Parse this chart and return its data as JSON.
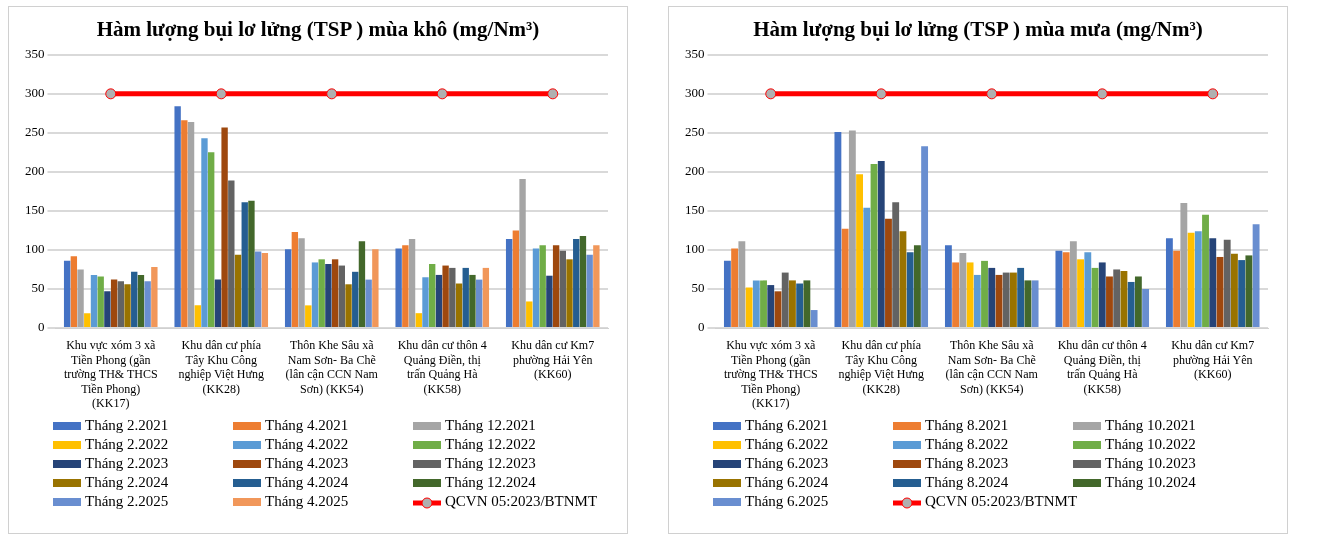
{
  "chart_data": [
    {
      "type": "bar",
      "title": "Hàm lượng bụi lơ lửng  (TSP ) mùa khô (mg/Nm³)",
      "categories": [
        "Khu vực xóm 3 xã Tiền Phong (gần trường TH& THCS Tiền Phong) (KK17)",
        "Khu dân cư phía Tây Khu Công nghiệp Việt Hưng (KK28)",
        "Thôn Khe Sâu xã Nam Sơn- Ba Chẽ (lân cận CCN Nam Sơn) (KK54)",
        "Khu dân cư thôn 4 Quảng Điền, thị trấn Quảng Hà (KK58)",
        "Khu dân cư Km7 phường Hải Yên (KK60)"
      ],
      "series": [
        {
          "name": "Tháng 2.2021",
          "color": "#4472c4",
          "values": [
            86,
            284,
            101,
            102,
            114
          ]
        },
        {
          "name": "Tháng 4.2021",
          "color": "#ed7d31",
          "values": [
            92,
            266,
            123,
            106,
            125
          ]
        },
        {
          "name": "Tháng 12.2021",
          "color": "#a5a5a5",
          "values": [
            75,
            264,
            115,
            114,
            191
          ]
        },
        {
          "name": "Tháng 2.2022",
          "color": "#ffc000",
          "values": [
            19,
            29,
            29,
            19,
            34
          ]
        },
        {
          "name": "Tháng 4.2022",
          "color": "#5b9bd5",
          "values": [
            68,
            243,
            84,
            65,
            102
          ]
        },
        {
          "name": "Tháng 12.2022",
          "color": "#70ad47",
          "values": [
            66,
            225,
            88,
            82,
            106
          ]
        },
        {
          "name": "Tháng 2.2023",
          "color": "#264478",
          "values": [
            47,
            62,
            82,
            68,
            67
          ]
        },
        {
          "name": "Tháng 4.2023",
          "color": "#9e480e",
          "values": [
            62,
            257,
            88,
            80,
            106
          ]
        },
        {
          "name": "Tháng 12.2023",
          "color": "#636363",
          "values": [
            60,
            189,
            80,
            77,
            99
          ]
        },
        {
          "name": "Tháng 2.2024",
          "color": "#997300",
          "values": [
            56,
            94,
            56,
            57,
            88
          ]
        },
        {
          "name": "Tháng 4.2024",
          "color": "#255e91",
          "values": [
            72,
            161,
            72,
            77,
            114
          ]
        },
        {
          "name": "Tháng 12.2024",
          "color": "#43682b",
          "values": [
            68,
            163,
            111,
            68,
            118
          ]
        },
        {
          "name": "Tháng 2.2025",
          "color": "#698ed0",
          "values": [
            60,
            98,
            62,
            62,
            94
          ]
        },
        {
          "name": "Tháng 4.2025",
          "color": "#f1975a",
          "values": [
            78,
            96,
            101,
            77,
            106
          ]
        },
        {
          "name": "QCVN 05:2023/BTNMT",
          "type": "line",
          "color": "#ff0000",
          "values": [
            300,
            300,
            300,
            300,
            300
          ]
        }
      ],
      "ylim": [
        0,
        350
      ],
      "yticks": [
        0,
        50,
        100,
        150,
        200,
        250,
        300,
        350
      ],
      "grid": "y",
      "legend": "bottom",
      "marker": "circle"
    },
    {
      "type": "bar",
      "title": "Hàm lượng bụi lơ lửng  (TSP ) mùa mưa (mg/Nm³)",
      "categories": [
        "Khu vực xóm 3 xã Tiền Phong (gần trường TH& THCS Tiền Phong) (KK17)",
        "Khu dân cư phía Tây Khu Công nghiệp Việt Hưng (KK28)",
        "Thôn Khe Sâu xã Nam Sơn- Ba Chẽ (lân cận CCN Nam Sơn) (KK54)",
        "Khu dân cư thôn 4 Quảng Điền, thị trấn Quảng Hà (KK58)",
        "Khu dân cư Km7 phường Hải Yên (KK60)"
      ],
      "series": [
        {
          "name": "Tháng 6.2021",
          "color": "#4472c4",
          "values": [
            86,
            251,
            106,
            99,
            115
          ]
        },
        {
          "name": "Tháng 8.2021",
          "color": "#ed7d31",
          "values": [
            102,
            127,
            84,
            97,
            99
          ]
        },
        {
          "name": "Tháng 10.2021",
          "color": "#a5a5a5",
          "values": [
            111,
            253,
            96,
            111,
            160
          ]
        },
        {
          "name": "Tháng 6.2022",
          "color": "#ffc000",
          "values": [
            52,
            197,
            84,
            88,
            122
          ]
        },
        {
          "name": "Tháng 8.2022",
          "color": "#5b9bd5",
          "values": [
            61,
            154,
            68,
            97,
            124
          ]
        },
        {
          "name": "Tháng 10.2022",
          "color": "#70ad47",
          "values": [
            61,
            210,
            86,
            77,
            145
          ]
        },
        {
          "name": "Tháng 6.2023",
          "color": "#264478",
          "values": [
            55,
            214,
            77,
            84,
            115
          ]
        },
        {
          "name": "Tháng 8.2023",
          "color": "#9e480e",
          "values": [
            47,
            140,
            68,
            66,
            91
          ]
        },
        {
          "name": "Tháng 10.2023",
          "color": "#636363",
          "values": [
            71,
            161,
            71,
            75,
            113
          ]
        },
        {
          "name": "Tháng 6.2024",
          "color": "#997300",
          "values": [
            61,
            124,
            71,
            73,
            95
          ]
        },
        {
          "name": "Tháng 8.2024",
          "color": "#255e91",
          "values": [
            57,
            97,
            77,
            59,
            87
          ]
        },
        {
          "name": "Tháng 10.2024",
          "color": "#43682b",
          "values": [
            61,
            106,
            61,
            66,
            93
          ]
        },
        {
          "name": "Tháng 6.2025",
          "color": "#698ed0",
          "values": [
            23,
            233,
            61,
            50,
            133
          ]
        },
        {
          "name": "QCVN 05:2023/BTNMT",
          "type": "line",
          "color": "#ff0000",
          "values": [
            300,
            300,
            300,
            300,
            300
          ]
        }
      ],
      "ylim": [
        0,
        350
      ],
      "yticks": [
        0,
        50,
        100,
        150,
        200,
        250,
        300,
        350
      ],
      "grid": "y",
      "legend": "bottom",
      "marker": "circle"
    }
  ]
}
